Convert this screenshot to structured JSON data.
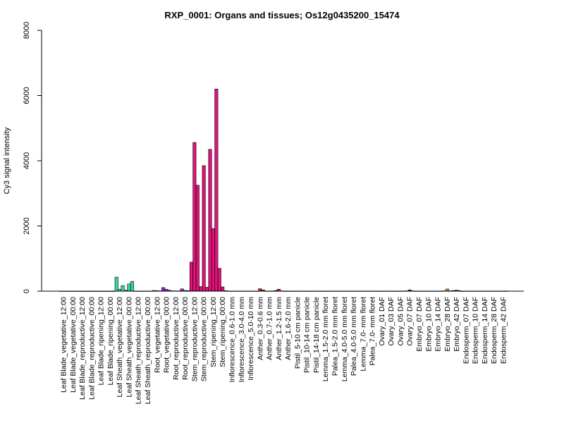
{
  "chart_data": {
    "type": "bar",
    "title": "RXP_0001: Organs and tissues; Os12g0435200_15474",
    "xlabel": "",
    "ylabel": "Cy3 signal intensity",
    "ylim": [
      0,
      8000
    ],
    "yticks": [
      0,
      2000,
      4000,
      6000,
      8000
    ],
    "grid": false,
    "legend": "none",
    "categories": [
      "Leaf Blade_vegetative_12:00",
      "Leaf Blade_vegetative_00:00",
      "Leaf Blade_reproductive_12:00",
      "Leaf Blade_reproductive_00:00",
      "Leaf Blade_ripening_12:00",
      "Leaf Blade_ripening_00:00",
      "Leaf Sheath_vegetative_12:00",
      "Leaf Sheath_vegetative_00:00",
      "Leaf Sheath_reproductive_12:00",
      "Leaf Sheath_reproductive_00:00",
      "Root_vegetative_12:00",
      "Root_vegetative_00:00",
      "Root_reproductive_12:00",
      "Root_reproductive_00:00",
      "Stem_reproductive_12:00",
      "Stem_reproductive_00:00",
      "Stem_ripening_12:00",
      "Stem_ripening_00:00",
      "Inflorescence_0.6-1.0 mm",
      "Inflorescence_3.0-4.0 mm",
      "Inflorescence_5.0-10 mm",
      "Anther_0.3-0.6 mm",
      "Anther_0.7-1.0 mm",
      "Anther_1.2-1.5 mm",
      "Anther_1.6-2.0 mm",
      "Pistil_5-10 cm panicle",
      "Pistil_10-14 cm panicle",
      "Pistil_14-18 cm panicle",
      "Lemma_1.5-2.0 mm floret",
      "Palea_1.5-2.0 mm floret",
      "Lemma_4.0-5.0 mm floret",
      "Palea_4.0-5.0 mm floret",
      "Lemma_7.0- mm floret",
      "Palea_7.0- mm floret",
      "Ovary_01 DAF",
      "Ovary_03 DAF",
      "Ovary_05 DAF",
      "Ovary_07 DAF",
      "Embryo_07 DAF",
      "Embryo_10 DAF",
      "Embryo_14 DAF",
      "Embryo_28 DAF",
      "Embryo_42 DAF",
      "Endosperm_07 DAF",
      "Endosperm_10 DAF",
      "Endosperm_14 DAF",
      "Endosperm_28 DAF",
      "Endosperm_42 DAF"
    ],
    "values": [
      [
        5,
        4,
        3
      ],
      [
        4,
        4,
        3
      ],
      [
        3,
        3,
        3
      ],
      [
        3,
        3,
        2
      ],
      [
        3,
        3,
        3
      ],
      [
        3,
        3,
        2
      ],
      [
        430,
        60,
        170
      ],
      [
        30,
        220,
        300
      ],
      [
        5,
        5,
        5
      ],
      [
        5,
        5,
        5
      ],
      [
        20,
        15,
        10
      ],
      [
        110,
        60,
        25
      ],
      [
        10,
        8,
        8
      ],
      [
        70,
        20,
        15
      ],
      [
        890,
        4560,
        3250
      ],
      [
        140,
        3850,
        120
      ],
      [
        4350,
        1920,
        6200
      ],
      [
        700,
        130,
        15
      ],
      [
        5,
        5,
        5
      ],
      [
        5,
        5,
        5
      ],
      [
        5,
        5,
        5
      ],
      [
        5,
        75,
        40
      ],
      [
        5,
        5,
        5
      ],
      [
        20,
        60,
        10
      ],
      [
        5,
        5,
        5
      ],
      [
        5,
        5,
        5
      ],
      [
        5,
        5,
        5
      ],
      [
        5,
        5,
        5
      ],
      [
        5,
        5,
        5
      ],
      [
        5,
        5,
        5
      ],
      [
        5,
        5,
        5
      ],
      [
        5,
        5,
        5
      ],
      [
        5,
        5,
        5
      ],
      [
        5,
        5,
        5
      ],
      [
        5,
        5,
        5
      ],
      [
        5,
        5,
        5
      ],
      [
        5,
        5,
        5
      ],
      [
        10,
        40,
        10
      ],
      [
        5,
        5,
        5
      ],
      [
        5,
        5,
        5
      ],
      [
        5,
        5,
        5
      ],
      [
        10,
        65,
        10
      ],
      [
        20,
        35,
        15
      ],
      [
        5,
        5,
        5
      ],
      [
        5,
        5,
        5
      ],
      [
        5,
        5,
        5
      ],
      [
        5,
        5,
        5
      ],
      [
        5,
        5,
        5
      ]
    ],
    "bar_colors": [
      "#e8e8e8",
      "#e8e8e8",
      "#e8e8e8",
      "#e8e8e8",
      "#e8e8e8",
      "#e8e8e8",
      "#33d6a6",
      "#33d6a6",
      "#33d6a6",
      "#33d6a6",
      "#8a2be2",
      "#8a2be2",
      "#8a2be2",
      "#8a2be2",
      "#e0137a",
      "#e0137a",
      "#e0137a",
      "#e0137a",
      "#e8e8e8",
      "#e8e8e8",
      "#e8e8e8",
      "#cc2222",
      "#cc2222",
      "#cc2222",
      "#cc2222",
      "#e8e8e8",
      "#e8e8e8",
      "#e8e8e8",
      "#e8e8e8",
      "#e8e8e8",
      "#e8e8e8",
      "#e8e8e8",
      "#e8e8e8",
      "#e8e8e8",
      "#3b3bd6",
      "#3b3bd6",
      "#3b3bd6",
      "#3b3bd6",
      "#d9822b",
      "#d9822b",
      "#d9822b",
      "#d9822b",
      "#d9822b",
      "#e8e8e8",
      "#e8e8e8",
      "#e8e8e8",
      "#e8e8e8",
      "#e8e8e8"
    ]
  }
}
